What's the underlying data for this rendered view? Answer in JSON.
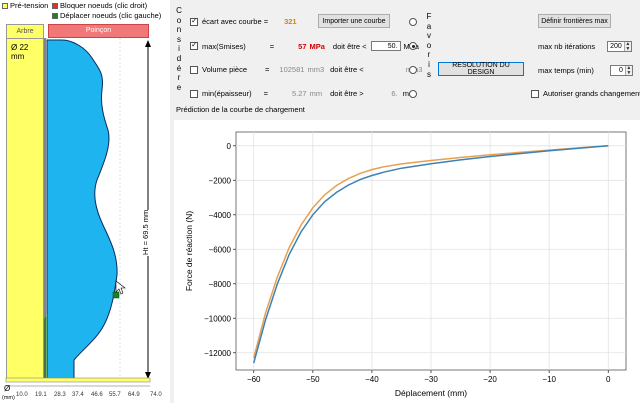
{
  "legend": {
    "pretension": "Pré-tension",
    "bloquer": "Bloquer noeuds (clic droit)",
    "deplacer": "Déplacer noeuds (clic gauche)",
    "colors": {
      "pretension": "#ffff66",
      "bloquer": "#e03030",
      "deplacer": "#208020"
    }
  },
  "design": {
    "arbre_label": "Arbre",
    "arbre_diameter": "Ø 22 mm",
    "poincon_label": "Poinçon",
    "height_label": "Ht = 69.5 mm",
    "scale_symbol": "Ø",
    "scale_unit": "(mm)",
    "scale_ticks": [
      "10.0",
      "19.1",
      "28.3",
      "37.4",
      "46.6",
      "55.7",
      "64.9",
      "74.0"
    ],
    "colors": {
      "arbre": "#ffff66",
      "poincon": "#1eb4f0",
      "poincon_head": "#f07878"
    }
  },
  "controls": {
    "considere_label": "Considére",
    "favoris_label": "Favoris",
    "ecart": {
      "label": "écart avec courbe =",
      "value": "321",
      "checked": true
    },
    "import_button": "Importer une courbe",
    "frontieres_button": "Définir frontières max",
    "max_smises": {
      "label": "max(Smises)",
      "eq": "=",
      "value": "57",
      "unit": "MPa",
      "constraint": "doit être <",
      "limit": "50.",
      "limit_unit": "MPa",
      "checked": true
    },
    "volume": {
      "label": "Volume pièce",
      "eq": "=",
      "value": "102581",
      "unit": "mm3",
      "constraint": "doit être <",
      "limit": "",
      "limit_unit": "mm3",
      "checked": false
    },
    "epaisseur": {
      "label": "min(épaisseur)",
      "eq": "=",
      "value": "5.27",
      "unit": "mm",
      "constraint": "doit être >",
      "limit": "6.",
      "limit_unit": "mm",
      "checked": false
    },
    "resolution_button": "RESOLUTION DU DESIGN",
    "max_iter": {
      "label": "max nb itérations",
      "value": "200"
    },
    "max_temps": {
      "label": "max temps (min)",
      "value": "0"
    },
    "grands_changements": {
      "label": "Autoriser grands changements",
      "checked": false
    }
  },
  "chart_title": "Prédiction de la courbe de chargement",
  "chart_data": {
    "type": "line",
    "xlabel": "Déplacement (mm)",
    "ylabel": "Force de réaction (N)",
    "xlim": [
      -63,
      3
    ],
    "ylim": [
      -13000,
      800
    ],
    "xticks": [
      -60,
      -50,
      -40,
      -30,
      -20,
      -10,
      0
    ],
    "yticks": [
      0,
      -2000,
      -4000,
      -6000,
      -8000,
      -10000,
      -12000
    ],
    "grid": true,
    "series": [
      {
        "color": "#e8a050",
        "x": [
          -60,
          -58,
          -56,
          -54,
          -52,
          -50,
          -48,
          -46,
          -44,
          -42,
          -40,
          -38,
          -35,
          -30,
          -25,
          -20,
          -15,
          -10,
          -5,
          0
        ],
        "y": [
          -12300,
          -9700,
          -7600,
          -5900,
          -4600,
          -3600,
          -2850,
          -2300,
          -1900,
          -1600,
          -1380,
          -1220,
          -1050,
          -850,
          -680,
          -520,
          -380,
          -250,
          -120,
          0
        ]
      },
      {
        "color": "#3c82b4",
        "x": [
          -60,
          -58,
          -56,
          -54,
          -52,
          -50,
          -48,
          -46,
          -44,
          -42,
          -40,
          -38,
          -35,
          -30,
          -25,
          -20,
          -15,
          -10,
          -5,
          0
        ],
        "y": [
          -12600,
          -10100,
          -8000,
          -6300,
          -5000,
          -4000,
          -3250,
          -2700,
          -2280,
          -1960,
          -1720,
          -1530,
          -1300,
          -1040,
          -820,
          -620,
          -450,
          -290,
          -140,
          0
        ]
      }
    ]
  }
}
